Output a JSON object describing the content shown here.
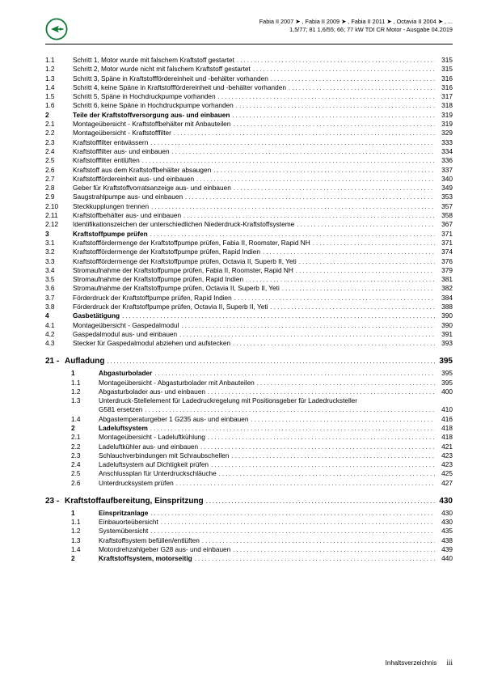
{
  "header": {
    "line1": "Fabia II 2007 ➤ , Fabia II 2009 ➤ , Fabia II 2011 ➤ , Octavia II 2004 ➤ , ...",
    "line2": "1,5/77; 81 1,6/55; 66; 77 kW TDI CR Motor - Ausgabe 04.2019"
  },
  "logo": {
    "ring": "#0a7a33",
    "arrow": "#0a7a33",
    "bg": "#ffffff",
    "label": "ŠKODA"
  },
  "items": [
    {
      "lvl": "l2",
      "num": "1.1",
      "title": "Schritt 1, Motor wurde mit falschem Kraftstoff gestartet",
      "pg": "315"
    },
    {
      "lvl": "l2",
      "num": "1.2",
      "title": "Schritt 2, Motor wurde nicht mit falschem Kraftstoff gestartet",
      "pg": "315"
    },
    {
      "lvl": "l2",
      "num": "1.3",
      "title": "Schritt 3, Späne in Kraftstofffördereinheit und -behälter vorhanden",
      "pg": "316"
    },
    {
      "lvl": "l2",
      "num": "1.4",
      "title": "Schritt 4, keine Späne in Kraftstofffördereinheit und -behälter vorhanden",
      "pg": "316"
    },
    {
      "lvl": "l2",
      "num": "1.5",
      "title": "Schritt 5, Späne in Hochdruckpumpe vorhanden",
      "pg": "317"
    },
    {
      "lvl": "l2",
      "num": "1.6",
      "title": "Schritt 6, keine Späne in Hochdruckpumpe vorhanden",
      "pg": "318"
    },
    {
      "lvl": "l1",
      "num": "2",
      "title": "Teile der Kraftstoffversorgung aus- und einbauen",
      "pg": "319",
      "bold": true
    },
    {
      "lvl": "l2",
      "num": "2.1",
      "title": "Montageübersicht - Kraftstoffbehälter mit Anbauteilen",
      "pg": "319"
    },
    {
      "lvl": "l2",
      "num": "2.2",
      "title": "Montageübersicht - Kraftstofffilter",
      "pg": "329"
    },
    {
      "lvl": "l2",
      "num": "2.3",
      "title": "Kraftstofffilter entwässern",
      "pg": "333"
    },
    {
      "lvl": "l2",
      "num": "2.4",
      "title": "Kraftstofffilter aus- und einbauen",
      "pg": "334"
    },
    {
      "lvl": "l2",
      "num": "2.5",
      "title": "Kraftstofffilter entlüften",
      "pg": "336"
    },
    {
      "lvl": "l2",
      "num": "2.6",
      "title": "Kraftstoff aus dem Kraftstoffbehälter absaugen",
      "pg": "337"
    },
    {
      "lvl": "l2",
      "num": "2.7",
      "title": "Kraftstofffördereinheit aus- und einbauen",
      "pg": "340"
    },
    {
      "lvl": "l2",
      "num": "2.8",
      "title": "Geber für Kraftstoffvorratsanzeige aus- und einbauen",
      "pg": "349"
    },
    {
      "lvl": "l2",
      "num": "2.9",
      "title": "Saugstrahlpumpe aus- und einbauen",
      "pg": "353"
    },
    {
      "lvl": "l2",
      "num": "2.10",
      "title": "Steckkupplungen trennen",
      "pg": "357"
    },
    {
      "lvl": "l2",
      "num": "2.11",
      "title": "Kraftstoffbehälter aus- und einbauen",
      "pg": "358"
    },
    {
      "lvl": "l2",
      "num": "2.12",
      "title": "Identifikationszeichen der unterschiedlichen Niederdruck-Kraftstoffsysteme",
      "pg": "367"
    },
    {
      "lvl": "l1",
      "num": "3",
      "title": "Kraftstoffpumpe prüfen",
      "pg": "371",
      "bold": true
    },
    {
      "lvl": "l2",
      "num": "3.1",
      "title": "Kraftstofffördermenge der Kraftstoffpumpe prüfen, Fabia II, Roomster, Rapid NH",
      "pg": "371"
    },
    {
      "lvl": "l2",
      "num": "3.2",
      "title": "Kraftstofffördermenge der Kraftstoffpumpe prüfen, Rapid Indien",
      "pg": "374"
    },
    {
      "lvl": "l2",
      "num": "3.3",
      "title": "Kraftstofffördermenge der Kraftstoffpumpe prüfen, Octavia II, Superb II, Yeti",
      "pg": "376"
    },
    {
      "lvl": "l2",
      "num": "3.4",
      "title": "Stromaufnahme der Kraftstoffpumpe prüfen, Fabia II, Roomster, Rapid NH",
      "pg": "379"
    },
    {
      "lvl": "l2",
      "num": "3.5",
      "title": "Stromaufnahme der Kraftstoffpumpe prüfen, Rapid Indien",
      "pg": "381"
    },
    {
      "lvl": "l2",
      "num": "3.6",
      "title": "Stromaufnahme der Kraftstoffpumpe prüfen, Octavia II, Superb II, Yeti",
      "pg": "382"
    },
    {
      "lvl": "l2",
      "num": "3.7",
      "title": "Förderdruck der Kraftstoffpumpe prüfen, Rapid Indien",
      "pg": "384"
    },
    {
      "lvl": "l2",
      "num": "3.8",
      "title": "Förderdruck der Kraftstoffpumpe prüfen, Octavia II, Superb II, Yeti",
      "pg": "388"
    },
    {
      "lvl": "l1",
      "num": "4",
      "title": "Gasbetätigung",
      "pg": "390",
      "bold": true
    },
    {
      "lvl": "l2",
      "num": "4.1",
      "title": "Montageübersicht - Gaspedalmodul",
      "pg": "390"
    },
    {
      "lvl": "l2",
      "num": "4.2",
      "title": "Gaspedalmodul aus- und einbauen",
      "pg": "391"
    },
    {
      "lvl": "l2",
      "num": "4.3",
      "title": "Stecker für Gaspedalmodul abziehen und aufstecken",
      "pg": "393"
    }
  ],
  "chapter21": {
    "num": "21 -",
    "title": "Aufladung",
    "pg": "395"
  },
  "items21": [
    {
      "lvl": "l1",
      "num": "1",
      "title": "Abgasturbolader",
      "pg": "395",
      "bold": true
    },
    {
      "lvl": "l2",
      "num": "1.1",
      "title": "Montageübersicht - Abgasturbolader mit Anbauteilen",
      "pg": "395"
    },
    {
      "lvl": "l2",
      "num": "1.2",
      "title": "Abgasturbolader aus- und einbauen",
      "pg": "400"
    },
    {
      "lvl": "l2wrap",
      "num": "1.3",
      "title1": "Unterdruck-Stellelement für Ladedruckregelung mit Positionsgeber für Ladedrucksteller",
      "title2": "G581 ersetzen",
      "pg": "410"
    },
    {
      "lvl": "l2",
      "num": "1.4",
      "title": "Abgastemperaturgeber 1 G235 aus- und einbauen",
      "pg": "416"
    },
    {
      "lvl": "l1",
      "num": "2",
      "title": "Ladeluftsystem",
      "pg": "418",
      "bold": true
    },
    {
      "lvl": "l2",
      "num": "2.1",
      "title": "Montageübersicht - Ladeluftkühlung",
      "pg": "418"
    },
    {
      "lvl": "l2",
      "num": "2.2",
      "title": "Ladeluftkühler aus- und einbauen",
      "pg": "421"
    },
    {
      "lvl": "l2",
      "num": "2.3",
      "title": "Schlauchverbindungen mit Schraubschellen",
      "pg": "423"
    },
    {
      "lvl": "l2",
      "num": "2.4",
      "title": "Ladeluftsystem auf Dichtigkeit prüfen",
      "pg": "423"
    },
    {
      "lvl": "l2",
      "num": "2.5",
      "title": "Anschlussplan für Unterdruckschläuche",
      "pg": "425"
    },
    {
      "lvl": "l2",
      "num": "2.6",
      "title": "Unterdrucksystem prüfen",
      "pg": "427"
    }
  ],
  "chapter23": {
    "num": "23 -",
    "title": "Kraftstoffaufbereitung, Einspritzung",
    "pg": "430"
  },
  "items23": [
    {
      "lvl": "l1",
      "num": "1",
      "title": "Einspritzanlage",
      "pg": "430",
      "bold": true
    },
    {
      "lvl": "l2",
      "num": "1.1",
      "title": "Einbauorteübersicht",
      "pg": "430"
    },
    {
      "lvl": "l2",
      "num": "1.2",
      "title": "Systemübersicht",
      "pg": "435"
    },
    {
      "lvl": "l2",
      "num": "1.3",
      "title": "Kraftstoffsystem befüllen/entlüften",
      "pg": "438"
    },
    {
      "lvl": "l2",
      "num": "1.4",
      "title": "Motordrehzahlgeber G28 aus- und einbauen",
      "pg": "439"
    },
    {
      "lvl": "l1",
      "num": "2",
      "title": "Kraftstoffsystem, motorseitig",
      "pg": "440",
      "bold": true
    }
  ],
  "footer": {
    "label": "Inhaltsverzeichnis",
    "page": "iii"
  }
}
